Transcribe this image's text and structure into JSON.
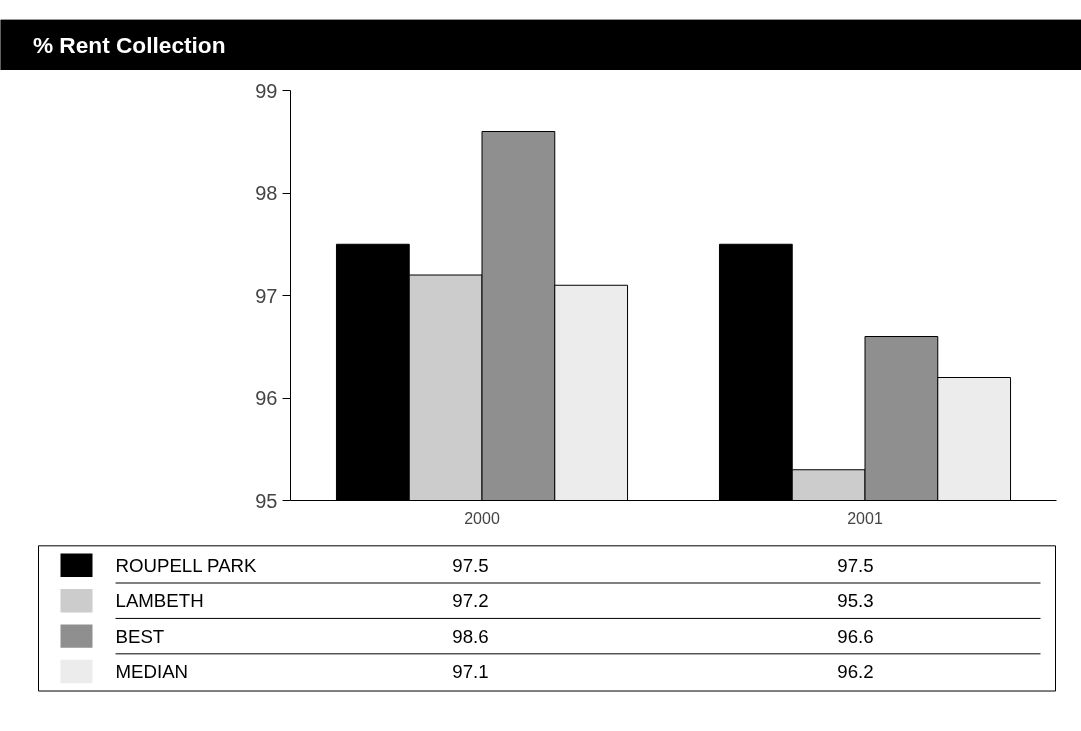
{
  "chart_data": {
    "type": "bar",
    "title": "% Rent Collection",
    "categories": [
      "2000",
      "2001"
    ],
    "series": [
      {
        "name": "ROUPELL PARK",
        "color": "#000000",
        "values": [
          97.5,
          97.5
        ]
      },
      {
        "name": "LAMBETH",
        "color": "#cccccc",
        "values": [
          97.2,
          95.3
        ]
      },
      {
        "name": "BEST",
        "color": "#8f8f8f",
        "values": [
          98.6,
          96.6
        ]
      },
      {
        "name": "MEDIAN",
        "color": "#ececec",
        "values": [
          97.1,
          96.2
        ]
      }
    ],
    "ylim": [
      95,
      99
    ],
    "yticks": [
      95,
      96,
      97,
      98,
      99
    ],
    "grid": false,
    "legend": "bottom",
    "data_labels": true
  }
}
